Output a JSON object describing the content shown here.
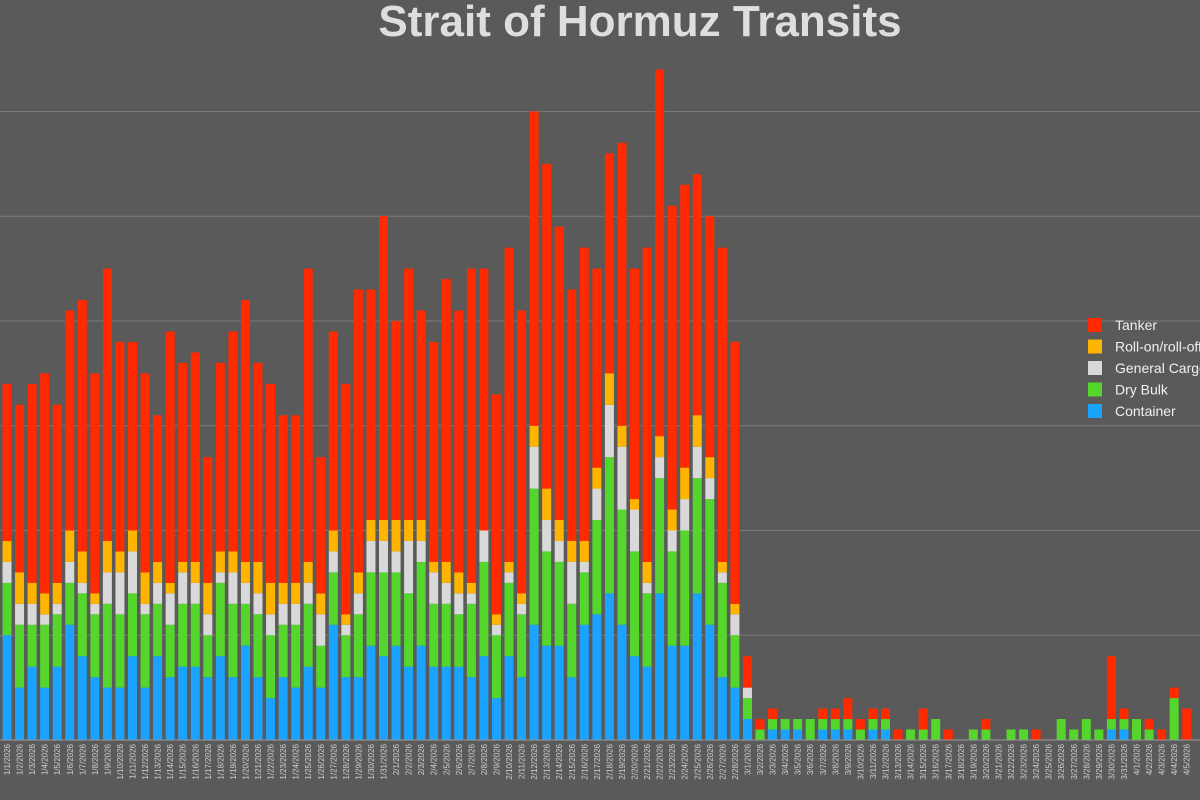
{
  "chart_data": {
    "type": "stacked_bar",
    "title": "Strait of Hormuz Transits",
    "categories": [
      "1/1/2026",
      "1/2/2026",
      "1/3/2026",
      "1/4/2026",
      "1/5/2026",
      "1/6/2026",
      "1/7/2026",
      "1/8/2026",
      "1/9/2026",
      "1/10/2026",
      "1/11/2026",
      "1/12/2026",
      "1/13/2026",
      "1/14/2026",
      "1/15/2026",
      "1/16/2026",
      "1/17/2026",
      "1/18/2026",
      "1/19/2026",
      "1/20/2026",
      "1/21/2026",
      "1/22/2026",
      "1/23/2026",
      "1/24/2026",
      "1/25/2026",
      "1/26/2026",
      "1/27/2026",
      "1/28/2026",
      "1/29/2026",
      "1/30/2026",
      "1/31/2026",
      "2/1/2026",
      "2/2/2026",
      "2/3/2026",
      "2/4/2026",
      "2/5/2026",
      "2/6/2026",
      "2/7/2026",
      "2/8/2026",
      "2/9/2026",
      "2/10/2026",
      "2/11/2026",
      "2/12/2026",
      "2/13/2026",
      "2/14/2026",
      "2/15/2026",
      "2/16/2026",
      "2/17/2026",
      "2/18/2026",
      "2/19/2026",
      "2/20/2026",
      "2/21/2026",
      "2/22/2026",
      "2/23/2026",
      "2/24/2026",
      "2/25/2026",
      "2/26/2026",
      "2/27/2026",
      "2/28/2026",
      "3/1/2026",
      "3/2/2026",
      "3/3/2026",
      "3/4/2026",
      "3/5/2026",
      "3/6/2026",
      "3/7/2026",
      "3/8/2026",
      "3/9/2026",
      "3/10/2026",
      "3/11/2026",
      "3/12/2026",
      "3/13/2026",
      "3/14/2026",
      "3/15/2026",
      "3/16/2026",
      "3/17/2026",
      "3/18/2026",
      "3/19/2026",
      "3/20/2026",
      "3/21/2026",
      "3/22/2026",
      "3/23/2026",
      "3/24/2026",
      "3/25/2026",
      "3/26/2026",
      "3/27/2026",
      "3/28/2026",
      "3/29/2026",
      "3/30/2026",
      "3/31/2026",
      "4/1/2026",
      "4/2/2026",
      "4/3/2026",
      "4/4/2026",
      "4/5/2026"
    ],
    "series": [
      {
        "name": "Tanker",
        "color": "#ff2a00",
        "values": [
          15,
          16,
          19,
          21,
          17,
          21,
          24,
          21,
          26,
          20,
          18,
          19,
          14,
          24,
          19,
          20,
          12,
          18,
          21,
          25,
          19,
          19,
          16,
          16,
          28,
          13,
          19,
          22,
          27,
          22,
          29,
          19,
          24,
          20,
          21,
          27,
          25,
          30,
          25,
          21,
          30,
          27,
          30,
          31,
          28,
          24,
          28,
          19,
          21,
          27,
          22,
          30,
          35,
          29,
          27,
          23,
          23,
          30,
          25,
          3,
          1,
          1,
          0,
          0,
          0,
          1,
          1,
          2,
          1,
          1,
          1,
          1,
          0,
          2,
          0,
          1,
          0,
          0,
          1,
          0,
          0,
          0,
          1,
          0,
          0,
          0,
          0,
          0,
          6,
          1,
          0,
          1,
          1,
          1,
          3
        ]
      },
      {
        "name": "Roll-on/roll-off",
        "color": "#ffb400",
        "values": [
          2,
          3,
          2,
          2,
          2,
          3,
          3,
          1,
          3,
          2,
          2,
          3,
          2,
          1,
          1,
          2,
          3,
          2,
          2,
          2,
          3,
          3,
          2,
          2,
          2,
          2,
          2,
          1,
          2,
          2,
          2,
          3,
          2,
          2,
          1,
          2,
          2,
          1,
          0,
          1,
          1,
          1,
          2,
          3,
          2,
          2,
          2,
          2,
          3,
          2,
          1,
          2,
          2,
          2,
          3,
          3,
          2,
          1,
          1,
          0,
          0,
          0,
          0,
          0,
          0,
          0,
          0,
          0,
          0,
          0,
          0,
          0,
          0,
          0,
          0,
          0,
          0,
          0,
          0,
          0,
          0,
          0,
          0,
          0,
          0,
          0,
          0,
          0,
          0,
          0,
          0,
          0,
          0,
          0,
          0
        ]
      },
      {
        "name": "General Cargo",
        "color": "#d9d9d9",
        "values": [
          2,
          2,
          2,
          1,
          1,
          2,
          1,
          1,
          3,
          4,
          4,
          1,
          2,
          3,
          3,
          2,
          2,
          1,
          3,
          2,
          2,
          2,
          2,
          2,
          2,
          3,
          2,
          1,
          2,
          3,
          3,
          2,
          5,
          2,
          3,
          2,
          2,
          1,
          3,
          1,
          1,
          1,
          4,
          3,
          2,
          4,
          1,
          3,
          5,
          6,
          4,
          1,
          2,
          2,
          3,
          3,
          2,
          1,
          2,
          1,
          0,
          0,
          0,
          0,
          0,
          0,
          0,
          0,
          0,
          0,
          0,
          0,
          0,
          0,
          0,
          0,
          0,
          0,
          0,
          0,
          0,
          0,
          0,
          0,
          0,
          0,
          0,
          0,
          0,
          0,
          0,
          0,
          0,
          0,
          0
        ]
      },
      {
        "name": "Dry Bulk",
        "color": "#55d62c",
        "values": [
          5,
          6,
          4,
          6,
          5,
          4,
          6,
          6,
          8,
          7,
          6,
          7,
          5,
          5,
          6,
          6,
          4,
          7,
          7,
          4,
          6,
          6,
          5,
          6,
          6,
          4,
          5,
          4,
          6,
          7,
          8,
          7,
          7,
          8,
          6,
          6,
          5,
          7,
          9,
          6,
          7,
          6,
          13,
          9,
          8,
          7,
          5,
          9,
          13,
          11,
          10,
          7,
          11,
          9,
          11,
          11,
          12,
          9,
          5,
          2,
          1,
          1,
          1,
          1,
          2,
          1,
          1,
          1,
          1,
          1,
          1,
          0,
          1,
          1,
          2,
          0,
          0,
          1,
          1,
          0,
          1,
          1,
          0,
          0,
          2,
          1,
          2,
          1,
          1,
          1,
          2,
          1,
          0,
          4,
          0
        ]
      },
      {
        "name": "Container",
        "color": "#1aa3ff",
        "values": [
          10,
          5,
          7,
          5,
          7,
          11,
          8,
          6,
          5,
          5,
          8,
          5,
          8,
          6,
          7,
          7,
          6,
          8,
          6,
          9,
          6,
          4,
          6,
          5,
          7,
          5,
          11,
          6,
          6,
          9,
          8,
          9,
          7,
          9,
          7,
          7,
          7,
          6,
          8,
          4,
          8,
          6,
          11,
          9,
          9,
          6,
          11,
          12,
          14,
          11,
          8,
          7,
          14,
          9,
          9,
          14,
          11,
          6,
          5,
          2,
          0,
          1,
          1,
          1,
          0,
          1,
          1,
          1,
          0,
          1,
          1,
          0,
          0,
          0,
          0,
          0,
          0,
          0,
          0,
          0,
          0,
          0,
          0,
          0,
          0,
          0,
          0,
          0,
          1,
          1,
          0,
          0,
          0,
          0,
          0
        ]
      }
    ],
    "ylim": [
      0,
      70
    ],
    "yticks": [
      0,
      10,
      20,
      30,
      40,
      50,
      60
    ],
    "grid": true,
    "legend": "right"
  }
}
